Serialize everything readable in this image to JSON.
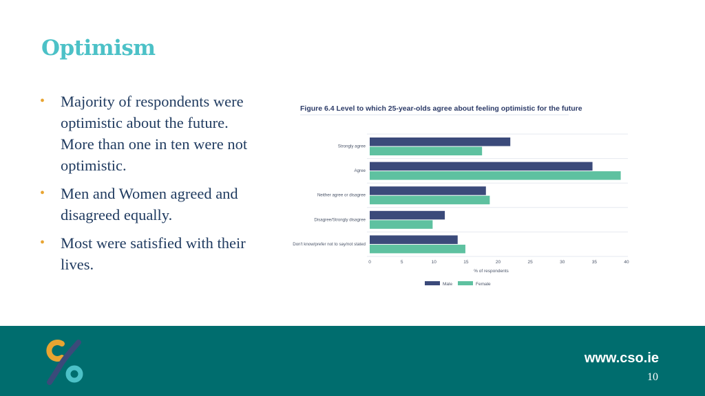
{
  "slide": {
    "title": "Optimism",
    "bullets": [
      "Majority of respondents were optimistic about the future. More than one in ten were not optimistic.",
      "Men and Women agreed and disagreed equally.",
      "Most were satisfied with their lives."
    ],
    "bullet_glyph": "•",
    "colors": {
      "title": "#4cc1c7",
      "bullet": "#e8a431",
      "footer": "#006d6e"
    }
  },
  "footer": {
    "website": "www.cso.ie",
    "page_number": "10",
    "logo_icon": "cso-logo-icon"
  },
  "chart_data": {
    "type": "bar",
    "orientation": "horizontal",
    "title": "Figure 6.4 Level to which 25-year-olds agree about feeling optimistic for the future",
    "xlabel": "% of respondents",
    "ylabel": "",
    "xlim": [
      0,
      40
    ],
    "x_ticks": [
      "0",
      "5",
      "10",
      "15",
      "20",
      "25",
      "30",
      "35",
      "40"
    ],
    "categories": [
      "Strongly agree",
      "Agree",
      "Neither agree or disagree",
      "Disagree/Strongly disagree",
      "Don't know/prefer not to say/not stated"
    ],
    "series": [
      {
        "name": "Male",
        "color": "#3b4a7a",
        "values": [
          21.9,
          34.7,
          18.1,
          11.7,
          13.7
        ]
      },
      {
        "name": "Female",
        "color": "#5ec1a0",
        "values": [
          17.5,
          39.1,
          18.7,
          9.8,
          14.9
        ]
      }
    ],
    "grid": true,
    "legend": "bottom"
  }
}
